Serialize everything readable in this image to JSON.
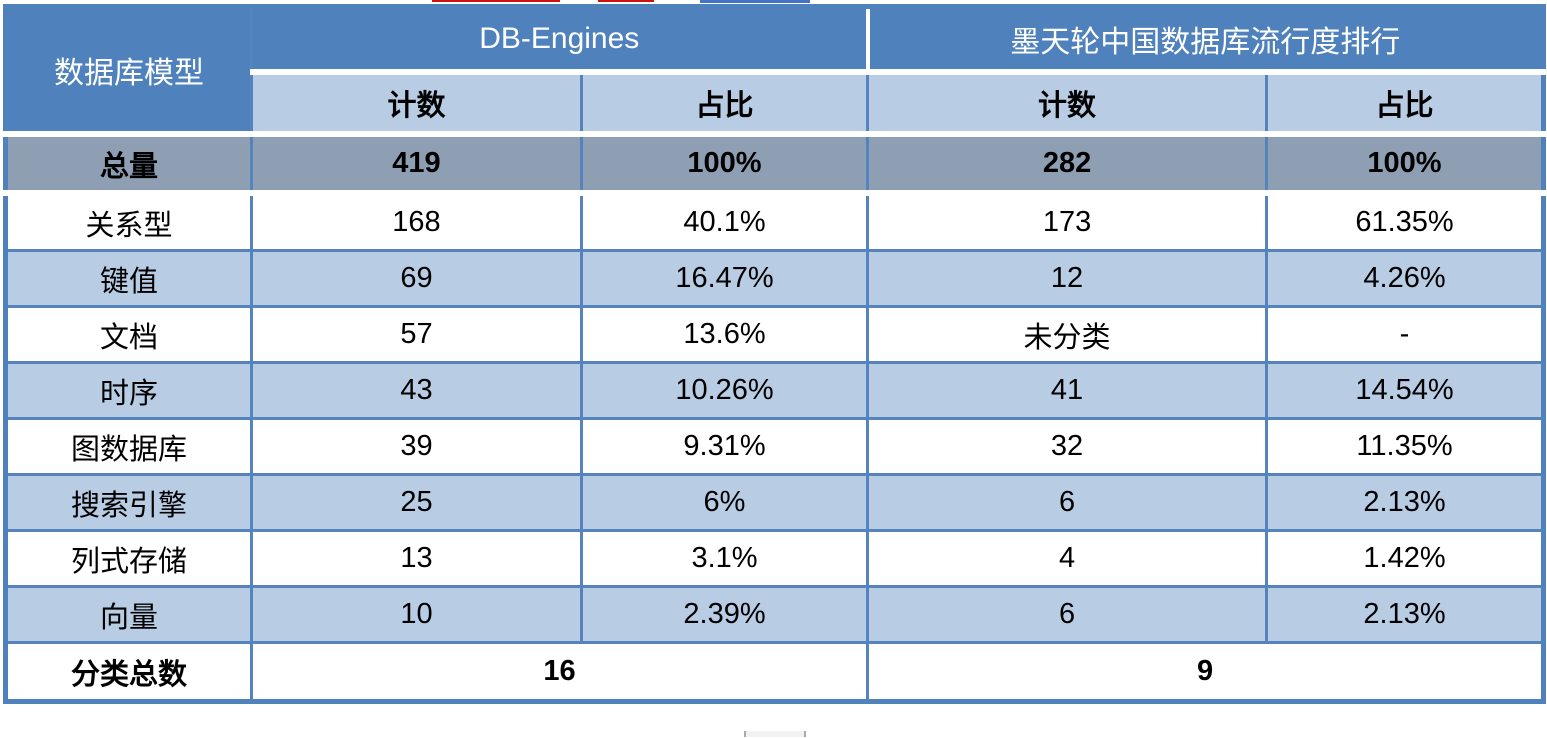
{
  "table": {
    "corner_label": "数据库模型",
    "groups": [
      {
        "label": "DB-Engines"
      },
      {
        "label": "墨天轮中国数据库流行度排行"
      }
    ],
    "subheaders": [
      "计数",
      "占比",
      "计数",
      "占比"
    ],
    "total_row": {
      "label": "总量",
      "values": [
        "419",
        "100%",
        "282",
        "100%"
      ]
    },
    "rows": [
      {
        "label": "关系型",
        "values": [
          "168",
          "40.1%",
          "173",
          "61.35%"
        ]
      },
      {
        "label": "键值",
        "values": [
          "69",
          "16.47%",
          "12",
          "4.26%"
        ]
      },
      {
        "label": "文档",
        "values": [
          "57",
          "13.6%",
          "未分类",
          "-"
        ]
      },
      {
        "label": "时序",
        "values": [
          "43",
          "10.26%",
          "41",
          "14.54%"
        ]
      },
      {
        "label": "图数据库",
        "values": [
          "39",
          "9.31%",
          "32",
          "11.35%"
        ]
      },
      {
        "label": "搜索引擎",
        "values": [
          "25",
          "6%",
          "6",
          "2.13%"
        ]
      },
      {
        "label": "列式存储",
        "values": [
          "13",
          "3.1%",
          "4",
          "1.42%"
        ]
      },
      {
        "label": "向量",
        "values": [
          "10",
          "2.39%",
          "6",
          "2.13%"
        ]
      }
    ],
    "summary_row": {
      "label": "分类总数",
      "values": [
        "16",
        "9"
      ]
    }
  },
  "colors": {
    "header_blue": "#4f81bd",
    "light_blue_row": "#b8cce4",
    "gray_total_row": "#8e9fb4",
    "grid_line_blue": "#5583bd",
    "white_separator": "#ffffff",
    "text_dark": "#000000",
    "text_light": "#ffffff"
  },
  "chart_data": {
    "type": "table",
    "title": "数据库模型分类对比：DB-Engines vs 墨天轮中国数据库流行度排行",
    "column_groups": [
      "DB-Engines",
      "墨天轮中国数据库流行度排行"
    ],
    "columns": [
      "数据库模型",
      "DB-Engines 计数",
      "DB-Engines 占比",
      "墨天轮 计数",
      "墨天轮 占比"
    ],
    "rows": [
      [
        "总量",
        "419",
        "100%",
        "282",
        "100%"
      ],
      [
        "关系型",
        "168",
        "40.1%",
        "173",
        "61.35%"
      ],
      [
        "键值",
        "69",
        "16.47%",
        "12",
        "4.26%"
      ],
      [
        "文档",
        "57",
        "13.6%",
        "未分类",
        "-"
      ],
      [
        "时序",
        "43",
        "10.26%",
        "41",
        "14.54%"
      ],
      [
        "图数据库",
        "39",
        "9.31%",
        "32",
        "11.35%"
      ],
      [
        "搜索引擎",
        "25",
        "6%",
        "6",
        "2.13%"
      ],
      [
        "列式存储",
        "13",
        "3.1%",
        "4",
        "1.42%"
      ],
      [
        "向量",
        "10",
        "2.39%",
        "6",
        "2.13%"
      ],
      [
        "分类总数",
        "16",
        "",
        "9",
        ""
      ]
    ]
  }
}
